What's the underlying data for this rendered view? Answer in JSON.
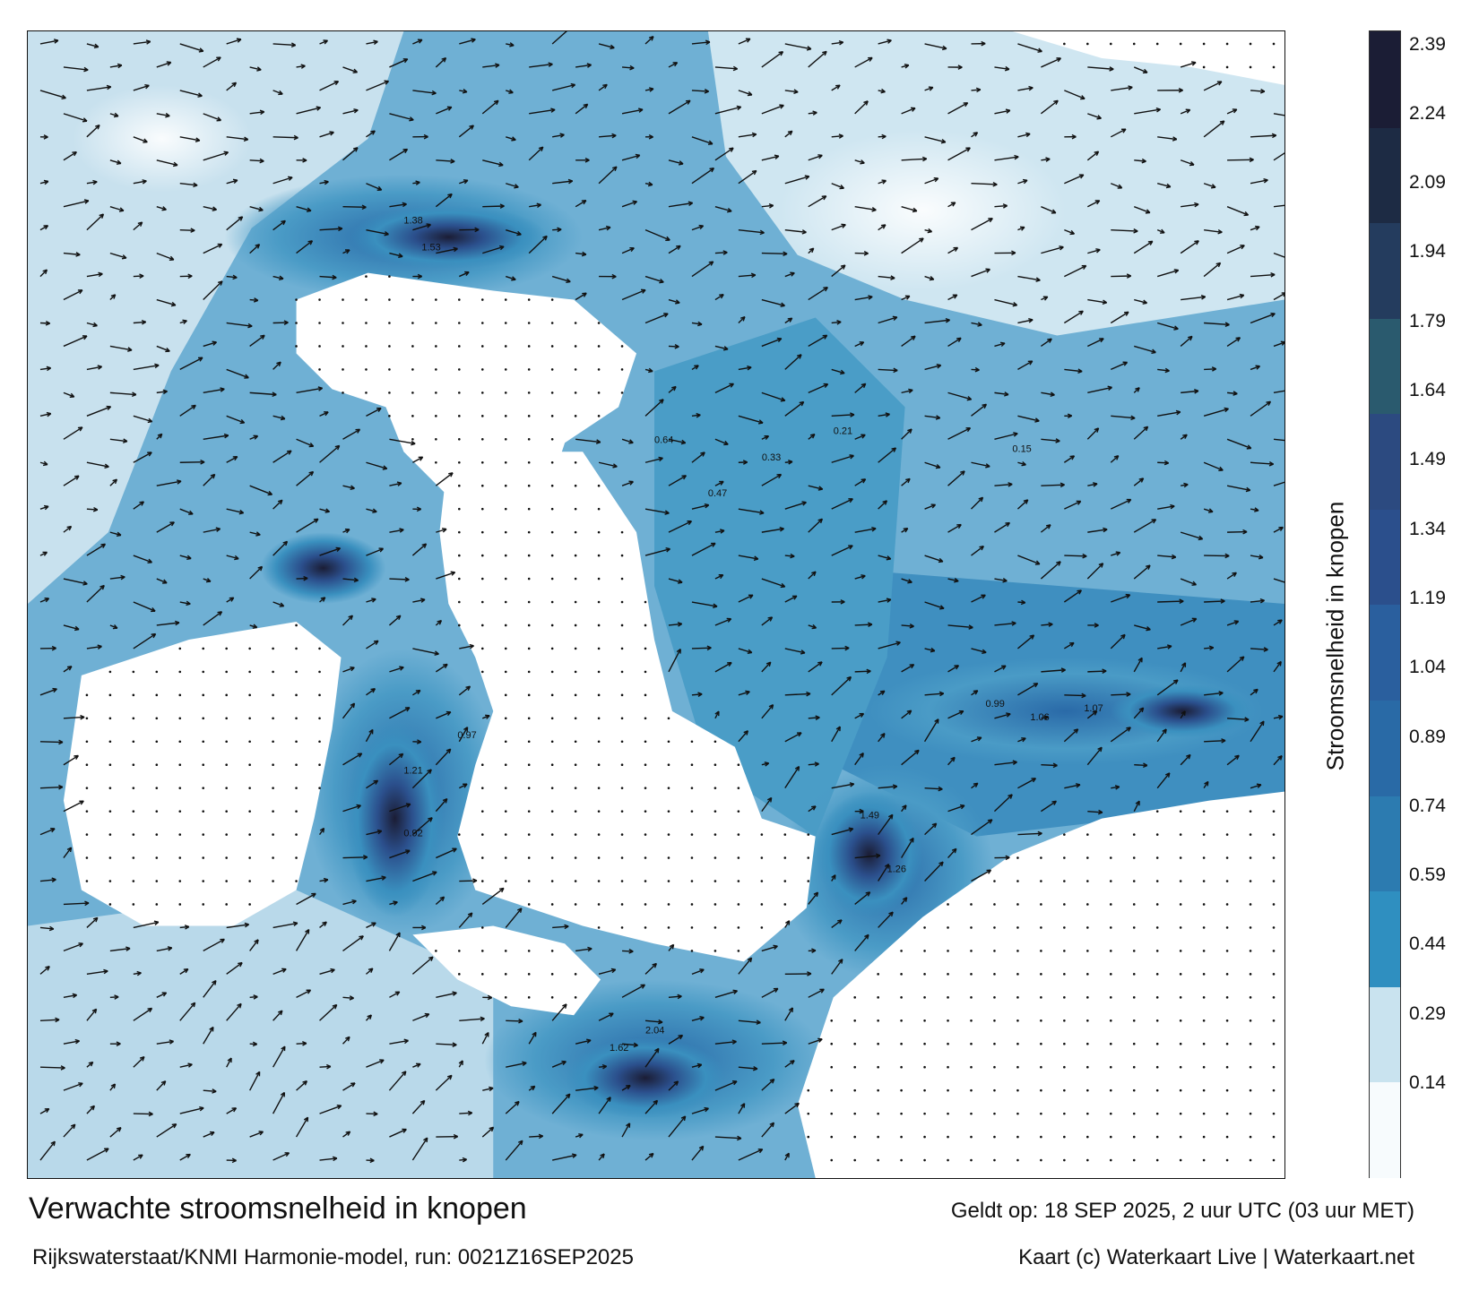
{
  "map": {
    "title": "Verwachte stroomsnelheid in knopen",
    "valid_time": "Geldt op: 18 SEP 2025, 2 uur UTC (03 uur MET)",
    "source": "Rijkswaterstaat/KNMI Harmonie-model, run: 0021Z16SEP2025",
    "credit": "Kaart (c) Waterkaart Live | Waterkaart.net",
    "colorbar_label": "Stroomsnelheid in knopen",
    "colorbar_ticks": [
      "0.14",
      "0.29",
      "0.44",
      "0.59",
      "0.74",
      "0.89",
      "1.04",
      "1.19",
      "1.34",
      "1.49",
      "1.64",
      "1.79",
      "1.94",
      "2.09",
      "2.24",
      "2.39"
    ],
    "colorbar_colors": [
      "#f7fbfd",
      "#c9e3ef",
      "#2f8fc0",
      "#2c7bb0",
      "#296aa6",
      "#2a5f9e",
      "#2b4f8c",
      "#2c4a80",
      "#2a5a6e",
      "#243c5e",
      "#1d2b44",
      "#1b1d35"
    ],
    "colors": {
      "land": "#ffffff",
      "water_light": "#c8e1ee",
      "water_mid": "#3a90bf",
      "water_strong": "#2a5a9c",
      "water_max": "#1b1d35",
      "arrow": "#111111"
    },
    "sample_labels": [
      "1.53",
      "1.38",
      "1.49",
      "1.26",
      "0.99",
      "1.21",
      "0.97",
      "2.04",
      "1.62",
      "1.06",
      "1.07",
      "0.92",
      "0.64",
      "0.47",
      "0.33",
      "0.21",
      "0.15"
    ]
  }
}
